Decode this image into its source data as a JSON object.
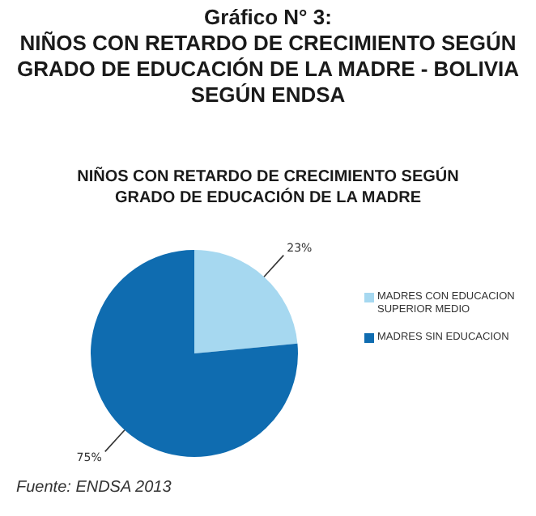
{
  "chart_data": {
    "type": "pie",
    "title": "Gráfico N° 3:\nNIÑOS CON RETARDO DE CRECIMIENTO SEGÚN GRADO DE EDUCACIÓN DE LA MADRE - BOLIVIA SEGÚN ENDSA",
    "subtitle": "NIÑOS CON RETARDO DE CRECIMIENTO SEGÚN GRADO DE EDUCACIÓN DE LA MADRE",
    "categories": [
      "MADRES CON EDUCACION SUPERIOR MEDIO",
      "MADRES SIN EDUCACION"
    ],
    "values": [
      23,
      75
    ],
    "value_labels": [
      "23%",
      "75%"
    ],
    "colors": [
      "#a6d8f0",
      "#0f6cb0"
    ],
    "legend": "right",
    "annotations": [
      "Fuente: ENDSA 2013"
    ]
  }
}
